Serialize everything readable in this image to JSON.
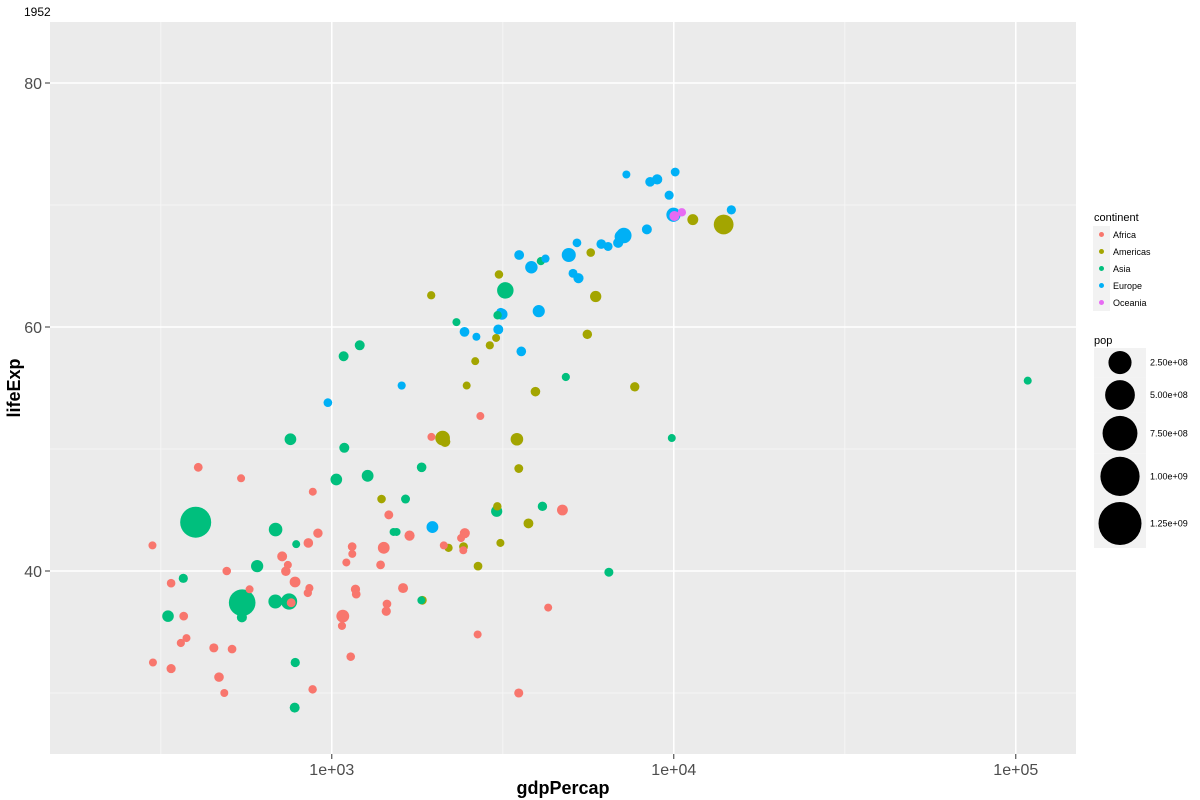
{
  "chart_data": {
    "type": "scatter",
    "title": "1952",
    "xlabel": "gdpPercap",
    "ylabel": "lifeExp",
    "x_scale": "log10",
    "xlim": [
      150,
      150000
    ],
    "ylim": [
      25,
      85
    ],
    "x_ticks": [
      {
        "value": 1000,
        "label": "1e+03"
      },
      {
        "value": 10000,
        "label": "1e+04"
      },
      {
        "value": 100000,
        "label": "1e+05"
      }
    ],
    "y_ticks": [
      {
        "value": 40,
        "label": "40"
      },
      {
        "value": 60,
        "label": "60"
      },
      {
        "value": 80,
        "label": "80"
      }
    ],
    "grid": true,
    "colors": {
      "Africa": "#F8766D",
      "Americas": "#A3A500",
      "Asia": "#00BF7D",
      "Europe": "#00B0F6",
      "Oceania": "#E76BF3",
      "panel_bg": "#EBEBEB",
      "grid": "#FFFFFF"
    },
    "legend": {
      "placement": "right",
      "continent": {
        "title": "continent",
        "entries": [
          "Africa",
          "Americas",
          "Asia",
          "Europe",
          "Oceania"
        ]
      },
      "size": {
        "title": "pop",
        "entries": [
          {
            "value": 250000000,
            "label": "2.50e+08"
          },
          {
            "value": 500000000,
            "label": "5.00e+08"
          },
          {
            "value": 750000000,
            "label": "7.50e+08"
          },
          {
            "value": 1000000000,
            "label": "1.00e+09"
          },
          {
            "value": 1250000000,
            "label": "1.25e+09"
          }
        ]
      }
    },
    "series": [
      {
        "name": "Africa",
        "points": [
          [
            2449,
            43.1,
            9300000.0
          ],
          [
            3521,
            30.0,
            4200000.0
          ],
          [
            851,
            38.2,
            1700000.0
          ],
          [
            543,
            47.6,
            400000.0
          ],
          [
            339,
            32.0,
            4500000.0
          ],
          [
            339,
            39.0,
            2400000.0
          ],
          [
            1173,
            38.5,
            5000000.0
          ],
          [
            1071,
            35.5,
            1300000.0
          ],
          [
            1179,
            38.1,
            2700000.0
          ],
          [
            1103,
            40.7,
            150000.0
          ],
          [
            781,
            39.1,
            14100000.0
          ],
          [
            2126,
            42.1,
            850000.0
          ],
          [
            1389,
            40.5,
            2900000.0
          ],
          [
            2670,
            34.8,
            60000.0
          ],
          [
            1419,
            41.9,
            22200000.0
          ],
          [
            376,
            34.5,
            220000.0
          ],
          [
            362,
            34.1,
            1400000.0
          ],
          [
            4293,
            37.0,
            420000.0
          ],
          [
            485,
            30.0,
            280000.0
          ],
          [
            911,
            43.1,
            5600000.0
          ],
          [
            511,
            33.6,
            2700000.0
          ],
          [
            300,
            32.5,
            580000.0
          ],
          [
            854,
            42.3,
            6500000.0
          ],
          [
            299,
            42.1,
            750000.0
          ],
          [
            575,
            38.5,
            860000.0
          ],
          [
            2388,
            42.7,
            1000000.0
          ],
          [
            1443,
            36.7,
            4800000.0
          ],
          [
            369,
            36.3,
            2900000.0
          ],
          [
            452,
            33.7,
            4100000.0
          ],
          [
            744,
            40.5,
            1000000.0
          ],
          [
            1956,
            50.99,
            520000.0
          ],
          [
            1688,
            42.9,
            9900000.0
          ],
          [
            468,
            31.3,
            6400000.0
          ],
          [
            2424,
            41.7,
            490000.0
          ],
          [
            761,
            37.4,
            3400000.0
          ],
          [
            1077,
            36.3,
            33100000.0
          ],
          [
            2719,
            52.7,
            260000.0
          ],
          [
            493,
            40.0,
            2500000.0
          ],
          [
            880,
            46.5,
            60000.0
          ],
          [
            1450,
            37.3,
            2800000.0
          ],
          [
            879,
            30.3,
            2100000.0
          ],
          [
            1136,
            32.98,
            2500000.0
          ],
          [
            4725,
            45.0,
            14300000.0
          ],
          [
            1616,
            38.6,
            8500000.0
          ],
          [
            1148,
            41.4,
            290000.0
          ],
          [
            716,
            41.2,
            8300000.0
          ],
          [
            860,
            38.6,
            1200000.0
          ],
          [
            1468,
            44.6,
            3600000.0
          ],
          [
            734,
            39.98,
            5800000.0
          ],
          [
            1147,
            42.0,
            2700000.0
          ],
          [
            407,
            48.5,
            3100000.0
          ]
        ]
      },
      {
        "name": "Americas",
        "points": [
          [
            5911,
            62.5,
            17900000.0
          ],
          [
            2677,
            40.4,
            2900000.0
          ],
          [
            2109,
            50.9,
            56600000.0
          ],
          [
            11367,
            68.8,
            14800000.0
          ],
          [
            3940,
            54.7,
            6400000.0
          ],
          [
            2144,
            50.6,
            12400000.0
          ],
          [
            2627,
            57.2,
            930000.0
          ],
          [
            5587,
            59.4,
            6000000.0
          ],
          [
            1398,
            45.9,
            2500000.0
          ],
          [
            3522,
            48.4,
            3500000.0
          ],
          [
            3048,
            45.3,
            2000000.0
          ],
          [
            2428,
            42.0,
            3100000.0
          ],
          [
            1840,
            37.6,
            3200000.0
          ],
          [
            2195,
            41.9,
            1500000.0
          ],
          [
            2898,
            58.5,
            1400000.0
          ],
          [
            3478,
            50.8,
            30100000.0
          ],
          [
            3112,
            42.3,
            1100000.0
          ],
          [
            2480,
            55.2,
            940000.0
          ],
          [
            1953,
            62.6,
            1600000.0
          ],
          [
            3759,
            43.9,
            8000000.0
          ],
          [
            3082,
            64.3,
            2200000.0
          ],
          [
            3023,
            59.1,
            660000.0
          ],
          [
            13990,
            68.4,
            157600000.0
          ],
          [
            5717,
            66.1,
            2300000.0
          ],
          [
            7690,
            55.1,
            5400000.0
          ]
        ]
      },
      {
        "name": "Asia",
        "points": [
          [
            779,
            28.8,
            8400000.0
          ],
          [
            9867,
            50.9,
            120000.0
          ],
          [
            684,
            37.5,
            46900000.0
          ],
          [
            368,
            39.4,
            4700000.0
          ],
          [
            400,
            44.0,
            556300000.0
          ],
          [
            3054,
            60.96,
            2100000.0
          ],
          [
            547,
            37.4,
            372000000.0
          ],
          [
            750,
            37.5,
            82100000.0
          ],
          [
            3035,
            44.9,
            17300000.0
          ],
          [
            4130,
            45.3,
            5400000.0
          ],
          [
            4087,
            65.4,
            1600000.0
          ],
          [
            3217,
            63.0,
            86500000.0
          ],
          [
            1547,
            43.2,
            610000.0
          ],
          [
            1088,
            50.1,
            8900000.0
          ],
          [
            1031,
            47.5,
            20900000.0
          ],
          [
            108382,
            55.6,
            160000.0
          ],
          [
            4835,
            55.9,
            1400000.0
          ],
          [
            1831,
            48.5,
            6700000.0
          ],
          [
            787,
            42.2,
            800000.0
          ],
          [
            332,
            36.3,
            20100000.0
          ],
          [
            546,
            36.2,
            9200000.0
          ],
          [
            1828,
            37.6,
            510000.0
          ],
          [
            685,
            43.4,
            42000000.0
          ],
          [
            1273,
            47.8,
            22400000.0
          ],
          [
            6460,
            39.9,
            4000000.0
          ],
          [
            2315,
            60.4,
            1100000.0
          ],
          [
            1083,
            57.6,
            8600000.0
          ],
          [
            1643,
            45.9,
            3700000.0
          ],
          [
            1207,
            58.5,
            8600000.0
          ],
          [
            757,
            50.8,
            21300000.0
          ],
          [
            605,
            40.4,
            26200000.0
          ],
          [
            1516,
            43.2,
            1000000.0
          ],
          [
            782,
            32.5,
            4960000.0
          ]
        ]
      },
      {
        "name": "Europe",
        "points": [
          [
            1601,
            55.2,
            1300000.0
          ],
          [
            6137,
            66.8,
            6900000.0
          ],
          [
            8343,
            68.0,
            8700000.0
          ],
          [
            974,
            53.8,
            2800000.0
          ],
          [
            2444,
            59.6,
            7300000.0
          ],
          [
            3119,
            61.2,
            3900000.0
          ],
          [
            6876,
            66.9,
            9100000.0
          ],
          [
            9692,
            70.8,
            4300000.0
          ],
          [
            6425,
            66.6,
            4100000.0
          ],
          [
            7030,
            67.4,
            42500000.0
          ],
          [
            7144,
            67.5,
            69100000.0
          ],
          [
            3531,
            65.9,
            7700000.0
          ],
          [
            5264,
            64.0,
            9500000.0
          ],
          [
            7268,
            72.5,
            150000.0
          ],
          [
            5211,
            66.9,
            3000000.0
          ],
          [
            4931,
            65.9,
            47700000.0
          ],
          [
            2648,
            59.2,
            410000.0
          ],
          [
            8942,
            72.1,
            10400000.0
          ],
          [
            10095,
            72.7,
            3300000.0
          ],
          [
            4029,
            61.3,
            25700000.0
          ],
          [
            3068,
            59.8,
            8500000.0
          ],
          [
            3145,
            61.05,
            16600000.0
          ],
          [
            3582,
            58.0,
            6900000.0
          ],
          [
            5074,
            64.4,
            3600000.0
          ],
          [
            4215,
            65.6,
            1500000.0
          ],
          [
            3834,
            64.9,
            28600000.0
          ],
          [
            8527,
            71.9,
            7100000.0
          ],
          [
            14734,
            69.6,
            4800000.0
          ],
          [
            1969,
            43.6,
            22200000.0
          ],
          [
            9980,
            69.2,
            50400000.0
          ]
        ]
      },
      {
        "name": "Oceania",
        "points": [
          [
            10040,
            69.1,
            8700000.0
          ],
          [
            10557,
            69.4,
            1990000.0
          ]
        ]
      }
    ]
  }
}
